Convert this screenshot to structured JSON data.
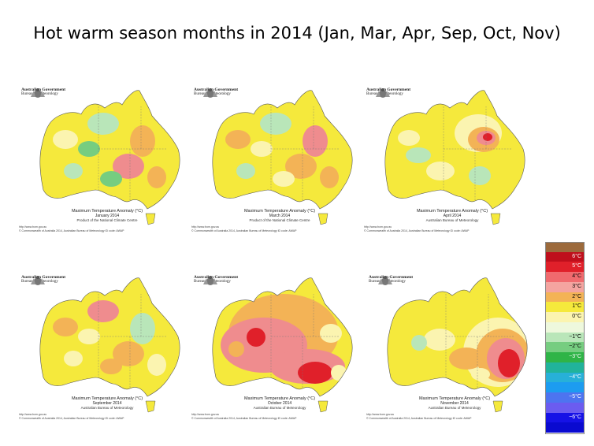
{
  "title": "Hot warm season months in 2014 (Jan, Mar, Apr, Sep, Oct, Nov)",
  "agency_line1": "Australian Government",
  "agency_line2": "Bureau of Meteorology",
  "panels": [
    {
      "id": "jan",
      "heading": "Maximum Temperature Anomaly (°C)",
      "period": "January 2014",
      "producer": "Product of the National Climate Centre",
      "footer_url": "http://www.bom.gov.au",
      "footer_copy": "© Commonwealth of Australia 2014, Australian Bureau of Meteorology          ID code: AWAP",
      "base_color": "#f5e93c",
      "blobs": [
        {
          "color": "#fbf4b0",
          "anomaly": "0–1°C"
        },
        {
          "color": "#b9e6b9",
          "anomaly": "-1–0°C"
        },
        {
          "color": "#76cd80",
          "anomaly": "-2–-1°C"
        },
        {
          "color": "#f3b356",
          "anomaly": "2–3°C"
        },
        {
          "color": "#ef8c8e",
          "anomaly": "3–4°C"
        },
        {
          "color": "#b9e6b9",
          "anomaly": "-1–0°C"
        },
        {
          "color": "#76cd80",
          "anomaly": "-2–-1°C"
        },
        {
          "color": "#f3b356",
          "anomaly": "2–3°C"
        }
      ]
    },
    {
      "id": "mar",
      "heading": "Maximum Temperature Anomaly (°C)",
      "period": "March 2014",
      "producer": "Product of the National Climate Centre",
      "footer_url": "http://www.bom.gov.au",
      "footer_copy": "© Commonwealth of Australia 2014, Australian Bureau of Meteorology          ID code: AWAP",
      "base_color": "#f5e93c",
      "blobs": [
        {
          "color": "#f3b356",
          "anomaly": "2–3°C"
        },
        {
          "color": "#b9e6b9",
          "anomaly": "-1–0°C"
        },
        {
          "color": "#fbf4b0",
          "anomaly": "0–1°C"
        },
        {
          "color": "#ef8c8e",
          "anomaly": "3–4°C"
        },
        {
          "color": "#f3b356",
          "anomaly": "2–3°C"
        },
        {
          "color": "#b9e6b9",
          "anomaly": "-1–0°C"
        },
        {
          "color": "#fbf4b0",
          "anomaly": "0–1°C"
        },
        {
          "color": "#f3b356",
          "anomaly": "2–3°C"
        }
      ]
    },
    {
      "id": "apr",
      "heading": "Maximum Temperature Anomaly (°C)",
      "period": "April 2014",
      "producer": "Australian Bureau of Meteorology",
      "footer_url": "http://www.bom.gov.au",
      "footer_copy": "© Commonwealth of Australia 2014, Australian Bureau of Meteorology          ID code: AWAP",
      "base_color": "#f5e93c",
      "blobs": [
        {
          "color": "#fbf4b0",
          "anomaly": "0–1°C"
        },
        {
          "color": "#f3b356",
          "anomaly": "2–3°C"
        },
        {
          "color": "#ef8c8e",
          "anomaly": "3–4°C"
        },
        {
          "color": "#e0202a",
          "anomaly": "4–5°C"
        },
        {
          "color": "#b9e6b9",
          "anomaly": "-1–0°C"
        },
        {
          "color": "#fbf4b0",
          "anomaly": "0–1°C"
        },
        {
          "color": "#b9e6b9",
          "anomaly": "-1–0°C"
        },
        {
          "color": "#fbf4b0",
          "anomaly": "0–1°C"
        }
      ]
    },
    {
      "id": "sep",
      "heading": "Maximum Temperature Anomaly (°C)",
      "period": "September 2014",
      "producer": "Australian Bureau of Meteorology",
      "footer_url": "http://www.bom.gov.au",
      "footer_copy": "© Commonwealth of Australia 2014, Australian Bureau of Meteorology          ID code: AWAP",
      "base_color": "#f5e93c",
      "blobs": [
        {
          "color": "#f3b356",
          "anomaly": "2–3°C"
        },
        {
          "color": "#ef8c8e",
          "anomaly": "3–4°C"
        },
        {
          "color": "#fbf4b0",
          "anomaly": "0–1°C"
        },
        {
          "color": "#b9e6b9",
          "anomaly": "-1–0°C"
        },
        {
          "color": "#f3b356",
          "anomaly": "2–3°C"
        },
        {
          "color": "#fbf4b0",
          "anomaly": "0–1°C"
        },
        {
          "color": "#f3b356",
          "anomaly": "2–3°C"
        },
        {
          "color": "#fbf4b0",
          "anomaly": "0–1°C"
        }
      ]
    },
    {
      "id": "oct",
      "heading": "Maximum Temperature Anomaly (°C)",
      "period": "October 2014",
      "producer": "Australian Bureau of Meteorology",
      "footer_url": "http://www.bom.gov.au",
      "footer_copy": "© Commonwealth of Australia 2014, Australian Bureau of Meteorology          ID code: AWAP",
      "base_color": "#f5e93c",
      "blobs": [
        {
          "color": "#f3b356",
          "anomaly": "2–3°C"
        },
        {
          "color": "#ef8c8e",
          "anomaly": "3–4°C"
        },
        {
          "color": "#e0202a",
          "anomaly": "4–5°C"
        },
        {
          "color": "#ef8c8e",
          "anomaly": "3–4°C"
        },
        {
          "color": "#e0202a",
          "anomaly": "4–5°C"
        },
        {
          "color": "#fbf4b0",
          "anomaly": "0–1°C"
        },
        {
          "color": "#f3b356",
          "anomaly": "2–3°C"
        },
        {
          "color": "#fbf4b0",
          "anomaly": "0–1°C"
        }
      ]
    },
    {
      "id": "nov",
      "heading": "Maximum Temperature Anomaly (°C)",
      "period": "November 2014",
      "producer": "Australian Bureau of Meteorology",
      "footer_url": "http://www.bom.gov.au",
      "footer_copy": "© Commonwealth of Australia 2014, Australian Bureau of Meteorology          ID code: AWAP",
      "base_color": "#f5e93c",
      "blobs": [
        {
          "color": "#fbf4b0",
          "anomaly": "0–1°C"
        },
        {
          "color": "#f3b356",
          "anomaly": "2–3°C"
        },
        {
          "color": "#ef8c8e",
          "anomaly": "3–4°C"
        },
        {
          "color": "#e0202a",
          "anomaly": "4–5°C"
        },
        {
          "color": "#fbf4b0",
          "anomaly": "0–1°C"
        },
        {
          "color": "#f3b356",
          "anomaly": "2–3°C"
        },
        {
          "color": "#b9e6b9",
          "anomaly": "-1–0°C"
        },
        {
          "color": "#fbf4b0",
          "anomaly": "0–1°C"
        }
      ]
    }
  ],
  "legend": [
    {
      "label": "",
      "color": "#9c6a3c"
    },
    {
      "label": "6°C",
      "color": "#bf0f1c"
    },
    {
      "label": "5°C",
      "color": "#e0202a"
    },
    {
      "label": "4°C",
      "color": "#f06a6e"
    },
    {
      "label": "3°C",
      "color": "#f4a4a0"
    },
    {
      "label": "2°C",
      "color": "#f3b356"
    },
    {
      "label": "1°C",
      "color": "#f5e93c"
    },
    {
      "label": "0°C",
      "color": "#fbf4b0"
    },
    {
      "label": "",
      "color": "#eef8dd"
    },
    {
      "label": "−1°C",
      "color": "#b9e6b9"
    },
    {
      "label": "−2°C",
      "color": "#76cd80"
    },
    {
      "label": "−3°C",
      "color": "#2fb447"
    },
    {
      "label": "",
      "color": "#21b39b"
    },
    {
      "label": "−4°C",
      "color": "#27b0d8"
    },
    {
      "label": "",
      "color": "#1c9cf0"
    },
    {
      "label": "−5°C",
      "color": "#4d74f0"
    },
    {
      "label": "",
      "color": "#6b5cf0"
    },
    {
      "label": "−6°C",
      "color": "#1612e6"
    },
    {
      "label": "",
      "color": "#0a0ad0"
    }
  ]
}
